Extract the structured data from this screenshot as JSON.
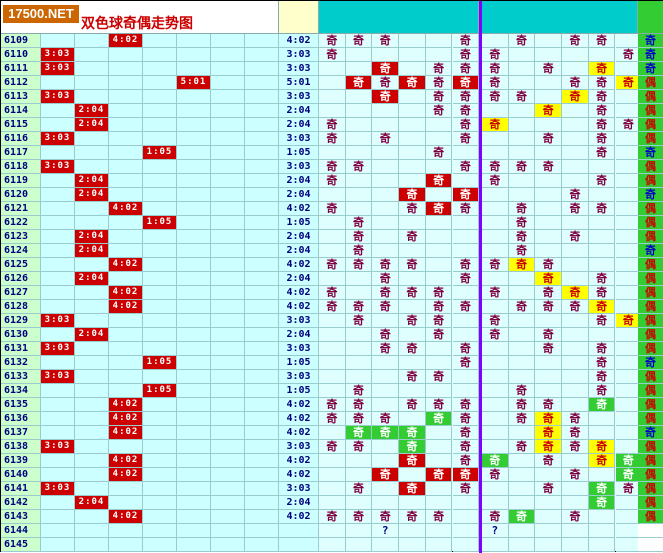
{
  "logo_text": "17500.NET",
  "chart_title": "双色球奇偶走势图",
  "odd_char": "奇",
  "even_char": "偶",
  "unknown_char": "?",
  "colors": {
    "mark_red": "#cc0000",
    "green": "#33cc33",
    "yellow": "#ffff00",
    "divider": "#8000ff",
    "cyan_bg": "#ccffff"
  },
  "rows": [
    {
      "issue": "6109",
      "ratio": "4:02",
      "grid": "oooxxoxoxooxo",
      "hl": "",
      "blue": "奇"
    },
    {
      "issue": "6110",
      "ratio": "3:03",
      "grid": "oxxxxooxxxxoy",
      "hl": "",
      "blue": "奇"
    },
    {
      "issue": "6111",
      "ratio": "3:03",
      "grid": "xxrxoooxoxyxx",
      "hl": "",
      "blue": "奇"
    },
    {
      "issue": "6112",
      "ratio": "5:01",
      "grid": "xrororoxxooyo",
      "hl": "",
      "blue": "偶"
    },
    {
      "issue": "6113",
      "ratio": "3:03",
      "grid": "xxrxooooxyoxo",
      "hl": "",
      "blue": "偶"
    },
    {
      "issue": "6114",
      "ratio": "2:04",
      "grid": "xxxxooxxyxoxo",
      "hl": "",
      "blue": "偶"
    },
    {
      "issue": "6115",
      "ratio": "2:04",
      "grid": "oxxxxoyxxxooo",
      "hl": "",
      "blue": "偶"
    },
    {
      "issue": "6116",
      "ratio": "3:03",
      "grid": "oxoxxoxxoxoxo",
      "hl": "",
      "blue": "偶"
    },
    {
      "issue": "6117",
      "ratio": "1:05",
      "grid": "xxxxoxxxxxoxo",
      "hl": "",
      "blue": "奇"
    },
    {
      "issue": "6118",
      "ratio": "3:03",
      "grid": "ooxxxooooxxxo",
      "hl": "",
      "blue": "偶"
    },
    {
      "issue": "6119",
      "ratio": "2:04",
      "grid": "oxxxrxoxxxoxo",
      "hl": "",
      "blue": "偶"
    },
    {
      "issue": "6120",
      "ratio": "2:04",
      "grid": "xxxrxrxxxoxxo",
      "hl": "",
      "blue": "奇"
    },
    {
      "issue": "6121",
      "ratio": "4:02",
      "grid": "oxxoroxoxooxo",
      "hl": "",
      "blue": "偶"
    },
    {
      "issue": "6122",
      "ratio": "1:05",
      "grid": "xoxxxxxoxxxxo",
      "hl": "",
      "blue": "偶"
    },
    {
      "issue": "6123",
      "ratio": "2:04",
      "grid": "xoxoxxxoxoxxo",
      "hl": "",
      "blue": "偶"
    },
    {
      "issue": "6124",
      "ratio": "2:04",
      "grid": "xoxxxxxoxxxxo",
      "hl": "",
      "blue": "奇"
    },
    {
      "issue": "6125",
      "ratio": "4:02",
      "grid": "ooooxooyoxxxo",
      "hl": "",
      "blue": "偶"
    },
    {
      "issue": "6126",
      "ratio": "2:04",
      "grid": "xxoxxoxxyxoxo",
      "hl": "",
      "blue": "偶"
    },
    {
      "issue": "6127",
      "ratio": "4:02",
      "grid": "oxoooxoxoyoxo",
      "hl": "",
      "blue": "偶"
    },
    {
      "issue": "6128",
      "ratio": "4:02",
      "grid": "oooxooxoooyxo",
      "hl": "",
      "blue": "偶"
    },
    {
      "issue": "6129",
      "ratio": "3:03",
      "grid": "xoxooxoxxxoyo",
      "hl": "",
      "blue": "偶"
    },
    {
      "issue": "6130",
      "ratio": "2:04",
      "grid": "xxoxoxoxoxxxo",
      "hl": "",
      "blue": "偶"
    },
    {
      "issue": "6131",
      "ratio": "3:03",
      "grid": "xxooxoxxoxoxo",
      "hl": "",
      "blue": "偶"
    },
    {
      "issue": "6132",
      "ratio": "1:05",
      "grid": "xxxxxoxxxxoxo",
      "hl": "",
      "blue": "奇"
    },
    {
      "issue": "6133",
      "ratio": "3:03",
      "grid": "xxxooxxxxxoxo",
      "hl": "",
      "blue": "偶"
    },
    {
      "issue": "6134",
      "ratio": "1:05",
      "grid": "xoxxxxxoxxoxo",
      "hl": "",
      "blue": "偶"
    },
    {
      "issue": "6135",
      "ratio": "4:02",
      "grid": "ooxoooxooxgxo",
      "hl": "",
      "blue": "偶"
    },
    {
      "issue": "6136",
      "ratio": "4:02",
      "grid": "oooxgoxoyoxxo",
      "hl": "",
      "blue": "偶"
    },
    {
      "issue": "6137",
      "ratio": "4:02",
      "grid": "xgggxoxxyoxxo",
      "hl": "",
      "blue": "奇"
    },
    {
      "issue": "6138",
      "ratio": "3:03",
      "grid": "ooxgxoxoyoyxo",
      "hl": "",
      "blue": "偶"
    },
    {
      "issue": "6139",
      "ratio": "4:02",
      "grid": "xxxrxogxoxygo",
      "hl": "",
      "blue": "偶"
    },
    {
      "issue": "6140",
      "ratio": "4:02",
      "grid": "xxrxrroxxoxgy",
      "hl": "",
      "blue": "偶"
    },
    {
      "issue": "6141",
      "ratio": "3:03",
      "grid": "xoxrxoxxoxgoo",
      "hl": "",
      "blue": "偶"
    },
    {
      "issue": "6142",
      "ratio": "2:04",
      "grid": "xxxxxxxxxxgxo",
      "hl": "",
      "blue": "偶"
    },
    {
      "issue": "6143",
      "ratio": "4:02",
      "grid": "oooooxogxoxxo",
      "hl": "",
      "blue": "偶"
    },
    {
      "issue": "6144",
      "ratio": "",
      "grid": "xxqxxxqxxxxxx",
      "hl": "",
      "blue": ""
    },
    {
      "issue": "6145",
      "ratio": "",
      "grid": "xxxxxxxxxxxxx",
      "hl": "",
      "blue": ""
    }
  ],
  "marks": [
    {
      "issue": "6109",
      "col": 2,
      "text": "4:02"
    },
    {
      "issue": "6110",
      "col": 0,
      "text": "3:03"
    },
    {
      "issue": "6111",
      "col": 0,
      "text": "3:03"
    },
    {
      "issue": "6112",
      "col": 4,
      "text": "5:01"
    },
    {
      "issue": "6113",
      "col": 0,
      "text": "3:03"
    },
    {
      "issue": "6114",
      "col": 1,
      "text": "2:04"
    },
    {
      "issue": "6115",
      "col": 1,
      "text": "2:04"
    },
    {
      "issue": "6116",
      "col": 0,
      "text": "3:03"
    },
    {
      "issue": "6117",
      "col": 3,
      "text": "1:05"
    },
    {
      "issue": "6118",
      "col": 0,
      "text": "3:03"
    },
    {
      "issue": "6119",
      "col": 1,
      "text": "2:04"
    },
    {
      "issue": "6120",
      "col": 1,
      "text": "2:04"
    },
    {
      "issue": "6121",
      "col": 2,
      "text": "4:02"
    },
    {
      "issue": "6122",
      "col": 3,
      "text": "1:05"
    },
    {
      "issue": "6123",
      "col": 1,
      "text": "2:04"
    },
    {
      "issue": "6124",
      "col": 1,
      "text": "2:04"
    },
    {
      "issue": "6125",
      "col": 2,
      "text": "4:02"
    },
    {
      "issue": "6126",
      "col": 1,
      "text": "2:04"
    },
    {
      "issue": "6127",
      "col": 2,
      "text": "4:02"
    },
    {
      "issue": "6128",
      "col": 2,
      "text": "4:02"
    },
    {
      "issue": "6129",
      "col": 0,
      "text": "3:03"
    },
    {
      "issue": "6130",
      "col": 1,
      "text": "2:04"
    },
    {
      "issue": "6131",
      "col": 0,
      "text": "3:03"
    },
    {
      "issue": "6132",
      "col": 3,
      "text": "1:05"
    },
    {
      "issue": "6133",
      "col": 0,
      "text": "3:03"
    },
    {
      "issue": "6134",
      "col": 3,
      "text": "1:05"
    },
    {
      "issue": "6135",
      "col": 2,
      "text": "4:02"
    },
    {
      "issue": "6136",
      "col": 2,
      "text": "4:02"
    },
    {
      "issue": "6137",
      "col": 2,
      "text": "4:02"
    },
    {
      "issue": "6138",
      "col": 0,
      "text": "3:03"
    },
    {
      "issue": "6139",
      "col": 2,
      "text": "4:02"
    },
    {
      "issue": "6140",
      "col": 2,
      "text": "4:02"
    },
    {
      "issue": "6141",
      "col": 0,
      "text": "3:03"
    },
    {
      "issue": "6142",
      "col": 1,
      "text": "2:04"
    },
    {
      "issue": "6143",
      "col": 2,
      "text": "4:02"
    }
  ]
}
